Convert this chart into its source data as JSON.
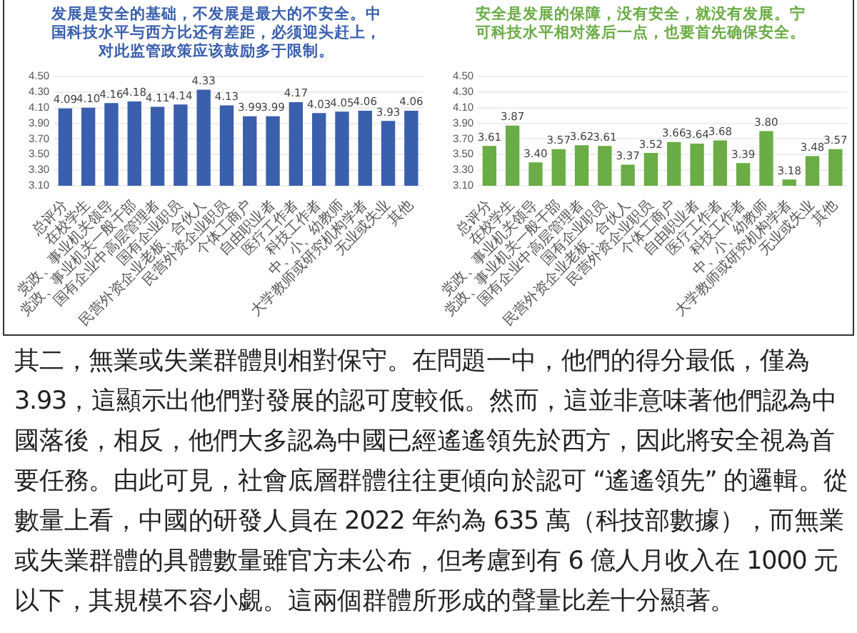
{
  "chart_data": [
    {
      "type": "bar",
      "title": "发展是安全的基础，不发展是最大的不安全。中国科技水平与西方比还有差距，必须迎头赶上，对此监管政策应该鼓励多于限制。",
      "categories": [
        "总评分",
        "在校学生",
        "党政、事业机关领导",
        "党政、事业机关一般干部",
        "国有企业中高层管理者",
        "国有企业职员",
        "民营外资企业老板、合伙人",
        "民营外资企业职员",
        "个体工商户",
        "自由职业者",
        "医疗工作者",
        "科技工作者",
        "中、小、幼教师",
        "大学教师或研究机构学者",
        "无业或失业",
        "其他"
      ],
      "values": [
        4.09,
        4.1,
        4.16,
        4.18,
        4.11,
        4.14,
        4.33,
        4.13,
        3.99,
        3.99,
        4.17,
        4.03,
        4.05,
        4.06,
        3.93,
        4.06
      ],
      "color": "#3a5fad",
      "ylim": [
        3.1,
        4.5
      ],
      "yticks": [
        {
          "value": 3.1,
          "label": "3.10"
        },
        {
          "value": 3.3,
          "label": "3.30"
        },
        {
          "value": 3.5,
          "label": "3.50"
        },
        {
          "value": 3.7,
          "label": "3.70"
        },
        {
          "value": 3.9,
          "label": "3.90"
        },
        {
          "value": 4.1,
          "label": "4.10"
        },
        {
          "value": 4.3,
          "label": "4.30"
        },
        {
          "value": 4.5,
          "label": "4.50"
        }
      ],
      "grid": "y",
      "value_labels": [
        "4.09",
        "4.10",
        "4.16",
        "4.18",
        "4.11",
        "4.14",
        "4.33",
        "4.13",
        "3.99",
        "3.99",
        "4.17",
        "4.03",
        "4.05",
        "4.06",
        "3.93",
        "4.06"
      ]
    },
    {
      "type": "bar",
      "title": "安全是发展的保障，没有安全，就没有发展。宁可科技水平相对落后一点，也要首先确保安全。",
      "categories": [
        "总评分",
        "在校学生",
        "党政、事业机关领导",
        "党政、事业机关一般干部",
        "国有企业中高层管理者",
        "国有企业职员",
        "民营外资企业老板、合伙人",
        "民营外资企业职员",
        "个体工商户",
        "自由职业者",
        "医疗工作者",
        "科技工作者",
        "中、小、幼教师",
        "大学教师或研究机构学者",
        "无业或失业",
        "其他"
      ],
      "values": [
        3.61,
        3.87,
        3.4,
        3.57,
        3.62,
        3.61,
        3.37,
        3.52,
        3.66,
        3.64,
        3.68,
        3.39,
        3.8,
        3.18,
        3.48,
        3.57
      ],
      "color": "#6aac45",
      "ylim": [
        3.1,
        4.5
      ],
      "yticks": [
        {
          "value": 3.1,
          "label": "3.10"
        },
        {
          "value": 3.3,
          "label": "3.30"
        },
        {
          "value": 3.5,
          "label": "3.50"
        },
        {
          "value": 3.7,
          "label": "3.70"
        },
        {
          "value": 3.9,
          "label": "3.90"
        },
        {
          "value": 4.1,
          "label": "4.10"
        },
        {
          "value": 4.3,
          "label": "4.30"
        },
        {
          "value": 4.5,
          "label": "4.50"
        }
      ],
      "grid": "y",
      "value_labels": [
        "3.61",
        "3.87",
        "3.40",
        "3.57",
        "3.62",
        "3.61",
        "3.37",
        "3.52",
        "3.66",
        "3.64",
        "3.68",
        "3.39",
        "3.80",
        "3.18",
        "3.48",
        "3.57"
      ]
    },
    {
      "type": "other",
      "annotations": [
        "其二，無業或失業群體則相對保守。在問題一中，他們的得分最低，僅為 3.93，這顯示出他們對發展的認可度較低。然而，這並非意味著他們認為中國落後，相反，他們大多認為中國已經遙遙領先於西方，因此將安全視為首要任務。由此可見，社會底層群體往往更傾向於認可 “遙遙領先” 的邏輯。從數量上看，中國的研發人員在 2022 年約為 635 萬（科技部數據），而無業或失業群體的具體數量雖官方未公布，但考慮到有 6 億人月收入在 1000 元以下，其規模不容小覷。這兩個群體所形成的聲量比差十分顯著。"
      ]
    }
  ]
}
